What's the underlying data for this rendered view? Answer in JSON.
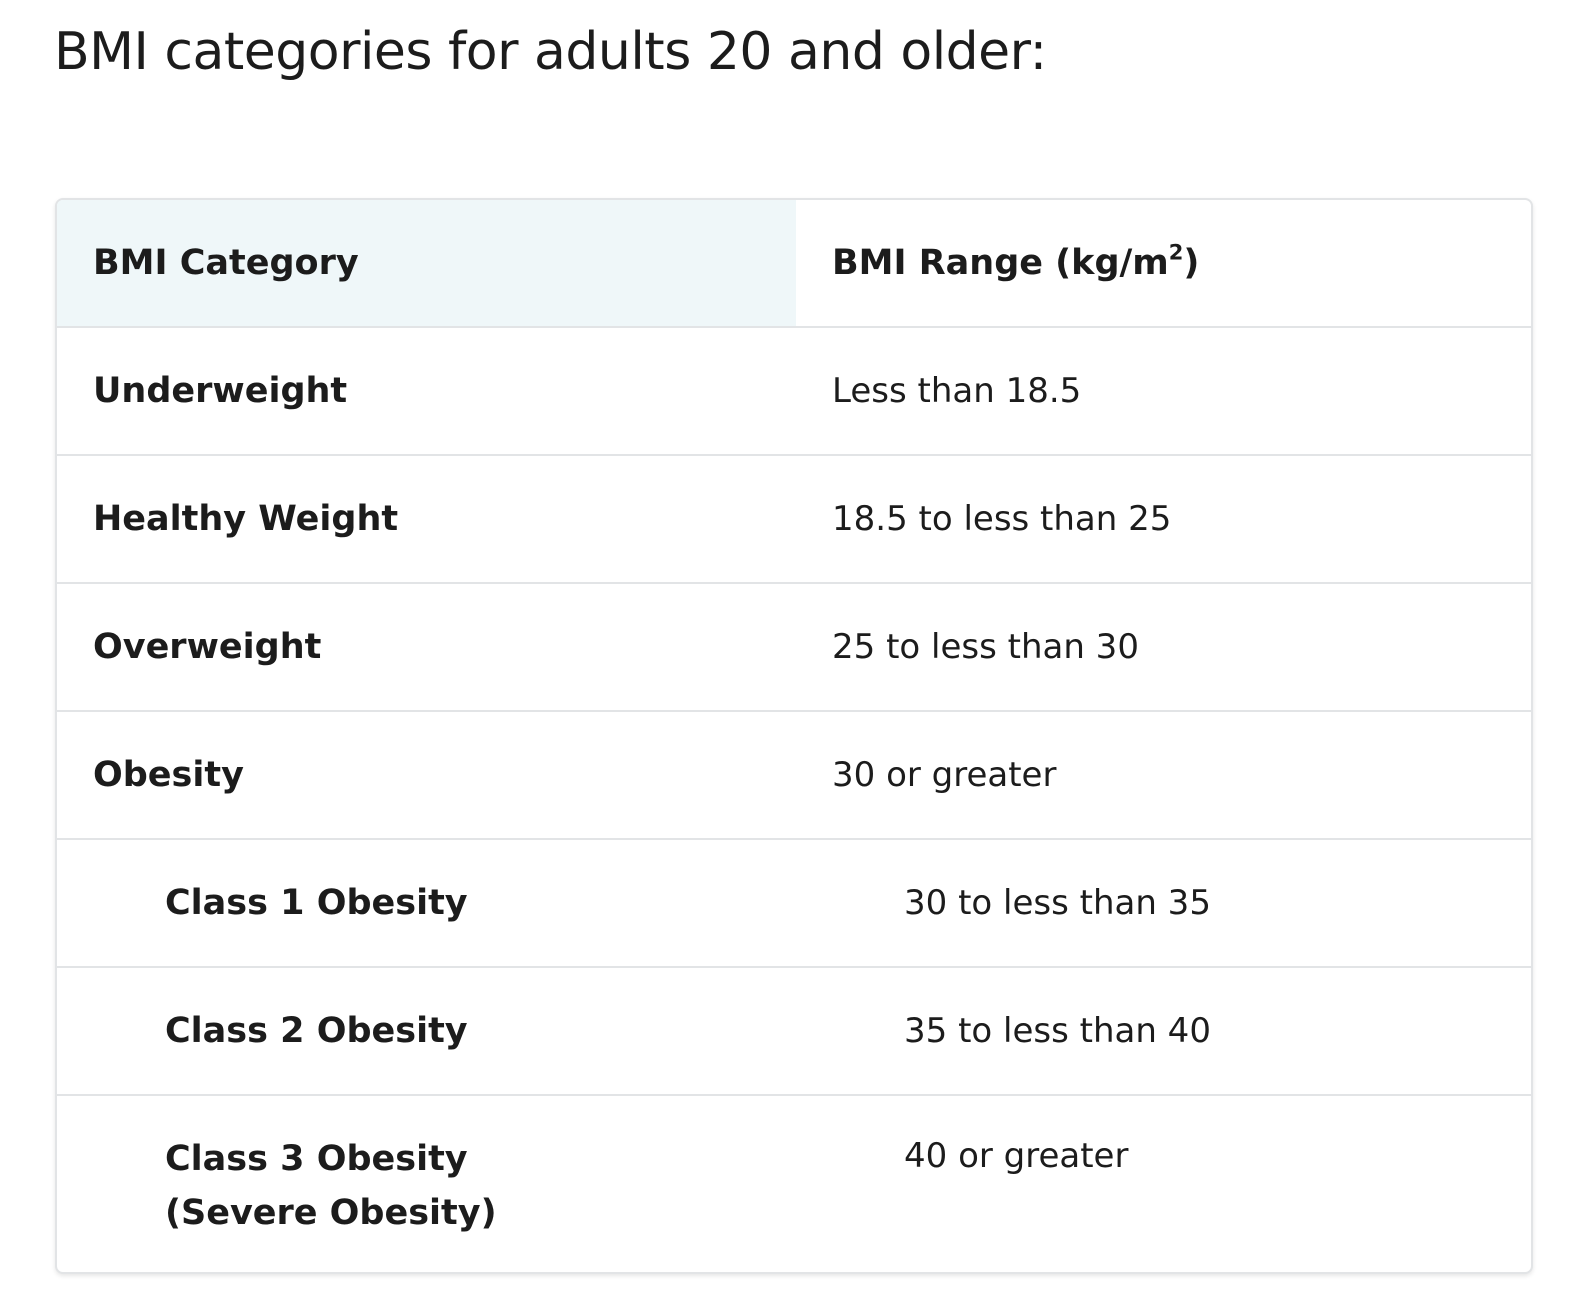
{
  "title": "BMI categories for adults 20 and older:",
  "table": {
    "headers": {
      "category": "BMI Category",
      "range_prefix": "BMI Range (kg/m",
      "range_sup": "2",
      "range_suffix": ")"
    },
    "rows": [
      {
        "category": "Underweight",
        "range": "Less than 18.5"
      },
      {
        "category": "Healthy Weight",
        "range": "18.5 to less than 25"
      },
      {
        "category": "Overweight",
        "range": "25 to less than 30"
      },
      {
        "category": "Obesity",
        "range": "30 or greater"
      },
      {
        "category": "Class 1 Obesity",
        "range": "30 to less than 35"
      },
      {
        "category": "Class 2 Obesity",
        "range": "35 to less than 40"
      },
      {
        "category": "Class 3 Obesity",
        "category_line2": "(Severe Obesity)",
        "range": "40 or greater"
      }
    ],
    "header_highlight_color": "#eff7f9",
    "border_color": "#e2e4e6"
  }
}
